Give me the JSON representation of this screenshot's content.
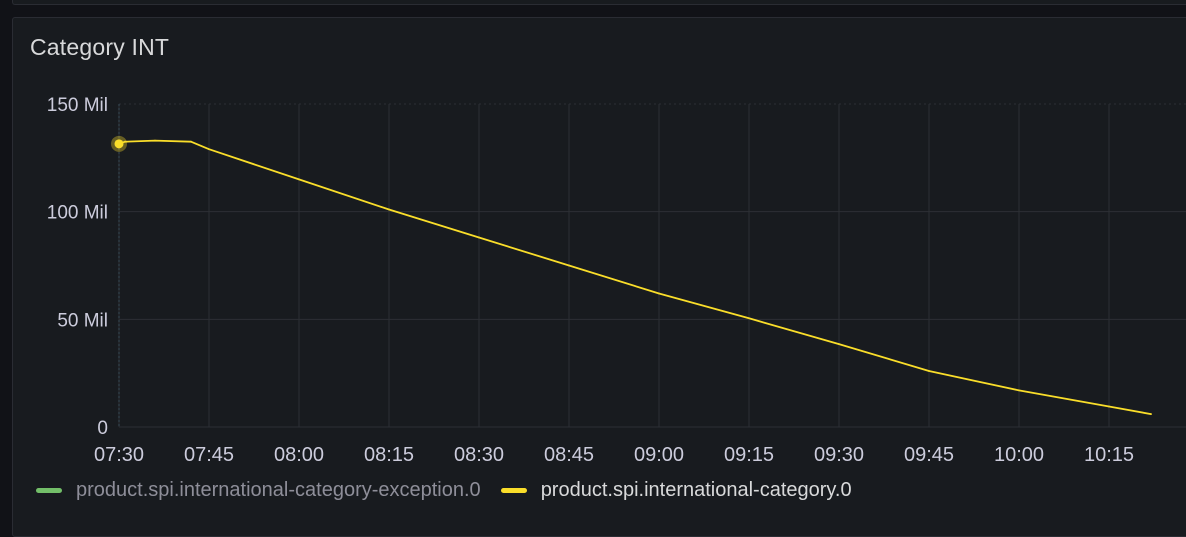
{
  "panel": {
    "title": "Category INT"
  },
  "colors": {
    "background": "#111217",
    "panel": "#181b1f",
    "grid": "#2c2f35",
    "text": "#ccccdc",
    "series_exception": "#73bf69",
    "series_category": "#fade2a"
  },
  "legend": {
    "items": [
      {
        "label": "product.spi.international-category-exception.0",
        "color": "#73bf69",
        "dimmed": true
      },
      {
        "label": "product.spi.international-category.0",
        "color": "#fade2a",
        "dimmed": false
      }
    ]
  },
  "chart_data": {
    "type": "line",
    "title": "Category INT",
    "xlabel": "",
    "ylabel": "",
    "y_ticks": [
      "0",
      "50 Mil",
      "100 Mil",
      "150 Mil"
    ],
    "y_tick_values": [
      0,
      50,
      100,
      150
    ],
    "ylim": [
      0,
      150
    ],
    "y_unit": "Mil",
    "x_ticks": [
      "07:30",
      "07:45",
      "08:00",
      "08:15",
      "08:30",
      "08:45",
      "09:00",
      "09:15",
      "09:30",
      "09:45",
      "10:00",
      "10:15",
      "1"
    ],
    "x_tick_minutes": [
      450,
      465,
      480,
      495,
      510,
      525,
      540,
      555,
      570,
      585,
      600,
      615,
      630
    ],
    "grid": true,
    "legend_position": "bottom-left",
    "series": [
      {
        "name": "product.spi.international-category-exception.0",
        "x": [],
        "values": []
      },
      {
        "name": "product.spi.international-category.0",
        "x": [
          "07:30",
          "07:31",
          "07:36",
          "07:42",
          "07:45",
          "08:00",
          "08:15",
          "08:30",
          "08:45",
          "09:00",
          "09:15",
          "09:30",
          "09:45",
          "10:00",
          "10:15",
          "10:22"
        ],
        "values": [
          131.5,
          132.5,
          133,
          132.5,
          129,
          115,
          101,
          88,
          75,
          62,
          50.5,
          38.5,
          26,
          17,
          9.5,
          6
        ]
      }
    ]
  }
}
